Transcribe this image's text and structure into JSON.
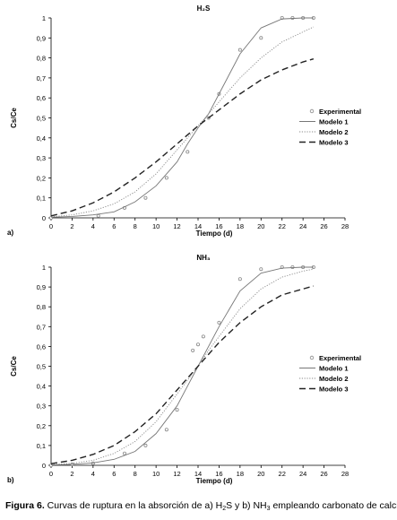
{
  "chart_data": [
    {
      "type": "line",
      "panel_label": "a)",
      "title": "H₂S",
      "xlabel": "Tiempo (d)",
      "ylabel": "Cs/Ce",
      "xlim": [
        0,
        28
      ],
      "ylim": [
        0,
        1
      ],
      "x_ticks": [
        0,
        2,
        4,
        6,
        8,
        10,
        12,
        14,
        16,
        18,
        20,
        22,
        24,
        26,
        28
      ],
      "y_ticks": [
        0,
        0.1,
        0.2,
        0.3,
        0.4,
        0.5,
        0.6,
        0.7,
        0.8,
        0.9,
        1
      ],
      "y_tick_labels": [
        "0",
        "0,1",
        "0,2",
        "0,3",
        "0,4",
        "0,5",
        "0,6",
        "0,7",
        "0,8",
        "0,9",
        "1"
      ],
      "grid": false,
      "legend_position": "right",
      "series": [
        {
          "name": "Experimental",
          "style": "markers",
          "color": "#888888",
          "x": [
            0,
            4.5,
            7,
            9,
            11,
            13,
            15,
            16,
            18,
            20,
            22,
            23,
            24,
            25
          ],
          "y": [
            0,
            0.01,
            0.05,
            0.1,
            0.2,
            0.33,
            0.5,
            0.62,
            0.84,
            0.9,
            1.0,
            1.0,
            1.0,
            1.0
          ]
        },
        {
          "name": "Modelo 1",
          "style": "solid",
          "color": "#777777",
          "x": [
            0,
            2,
            4,
            6,
            8,
            10,
            12,
            13,
            14,
            15,
            16,
            18,
            20,
            22,
            24,
            25
          ],
          "y": [
            0.003,
            0.007,
            0.015,
            0.03,
            0.08,
            0.16,
            0.28,
            0.37,
            0.45,
            0.52,
            0.62,
            0.82,
            0.95,
            0.995,
            1.0,
            1.0
          ]
        },
        {
          "name": "Modelo 2",
          "style": "dotted",
          "color": "#888888",
          "x": [
            0,
            2,
            4,
            6,
            8,
            10,
            12,
            14,
            15,
            16,
            18,
            20,
            22,
            24,
            25
          ],
          "y": [
            0.005,
            0.015,
            0.035,
            0.07,
            0.13,
            0.22,
            0.34,
            0.46,
            0.52,
            0.58,
            0.7,
            0.8,
            0.88,
            0.93,
            0.955
          ]
        },
        {
          "name": "Modelo 3",
          "style": "dashed",
          "color": "#222222",
          "x": [
            0,
            2,
            4,
            6,
            8,
            10,
            12,
            14,
            15,
            16,
            18,
            20,
            22,
            24,
            25
          ],
          "y": [
            0.01,
            0.035,
            0.075,
            0.13,
            0.2,
            0.28,
            0.37,
            0.46,
            0.5,
            0.54,
            0.62,
            0.69,
            0.74,
            0.78,
            0.795
          ]
        }
      ]
    },
    {
      "type": "line",
      "panel_label": "b)",
      "title": "NH₃",
      "xlabel": "Tiempo (d)",
      "ylabel": "Cs/Ce",
      "xlim": [
        0,
        28
      ],
      "ylim": [
        0,
        1
      ],
      "x_ticks": [
        0,
        2,
        4,
        6,
        8,
        10,
        12,
        14,
        16,
        18,
        20,
        22,
        24,
        26,
        28
      ],
      "y_ticks": [
        0,
        0.1,
        0.2,
        0.3,
        0.4,
        0.5,
        0.6,
        0.7,
        0.8,
        0.9,
        1
      ],
      "y_tick_labels": [
        "0",
        "0,1",
        "0,2",
        "0,3",
        "0,4",
        "0,5",
        "0,6",
        "0,7",
        "0,8",
        "0,9",
        "1"
      ],
      "grid": false,
      "legend_position": "right",
      "series": [
        {
          "name": "Experimental",
          "style": "markers",
          "color": "#888888",
          "x": [
            0,
            2,
            4,
            7,
            9,
            11,
            12,
            13.5,
            14,
            14.5,
            16,
            18,
            20,
            22,
            23,
            24,
            25
          ],
          "y": [
            0,
            0.005,
            0.01,
            0.06,
            0.1,
            0.18,
            0.28,
            0.58,
            0.61,
            0.65,
            0.72,
            0.94,
            0.99,
            1.0,
            1.0,
            1.0,
            1.0
          ]
        },
        {
          "name": "Modelo 1",
          "style": "solid",
          "color": "#777777",
          "x": [
            0,
            2,
            4,
            6,
            8,
            10,
            12,
            13,
            14,
            15,
            16,
            18,
            20,
            22,
            24,
            25
          ],
          "y": [
            0.002,
            0.005,
            0.012,
            0.03,
            0.07,
            0.16,
            0.3,
            0.4,
            0.5,
            0.6,
            0.7,
            0.88,
            0.97,
            0.995,
            1.0,
            1.0
          ]
        },
        {
          "name": "Modelo 2",
          "style": "dotted",
          "color": "#888888",
          "x": [
            0,
            2,
            4,
            6,
            8,
            10,
            12,
            14,
            15,
            16,
            18,
            20,
            22,
            24,
            25
          ],
          "y": [
            0.004,
            0.01,
            0.025,
            0.06,
            0.12,
            0.22,
            0.36,
            0.5,
            0.58,
            0.65,
            0.79,
            0.89,
            0.95,
            0.98,
            0.99
          ]
        },
        {
          "name": "Modelo 3",
          "style": "dashed",
          "color": "#222222",
          "x": [
            0,
            2,
            4,
            6,
            8,
            10,
            12,
            14,
            15,
            16,
            18,
            20,
            22,
            24,
            25
          ],
          "y": [
            0.008,
            0.025,
            0.055,
            0.1,
            0.17,
            0.26,
            0.38,
            0.5,
            0.56,
            0.62,
            0.72,
            0.8,
            0.86,
            0.89,
            0.905
          ]
        }
      ]
    }
  ],
  "caption": {
    "bold": "Figura 6.",
    "part1": " Curvas de ruptura en la absorción de a) H",
    "sub1": "2",
    "part2": "S y b) NH",
    "sub2": "3",
    "part3": " empleando carbonato de calcio."
  }
}
